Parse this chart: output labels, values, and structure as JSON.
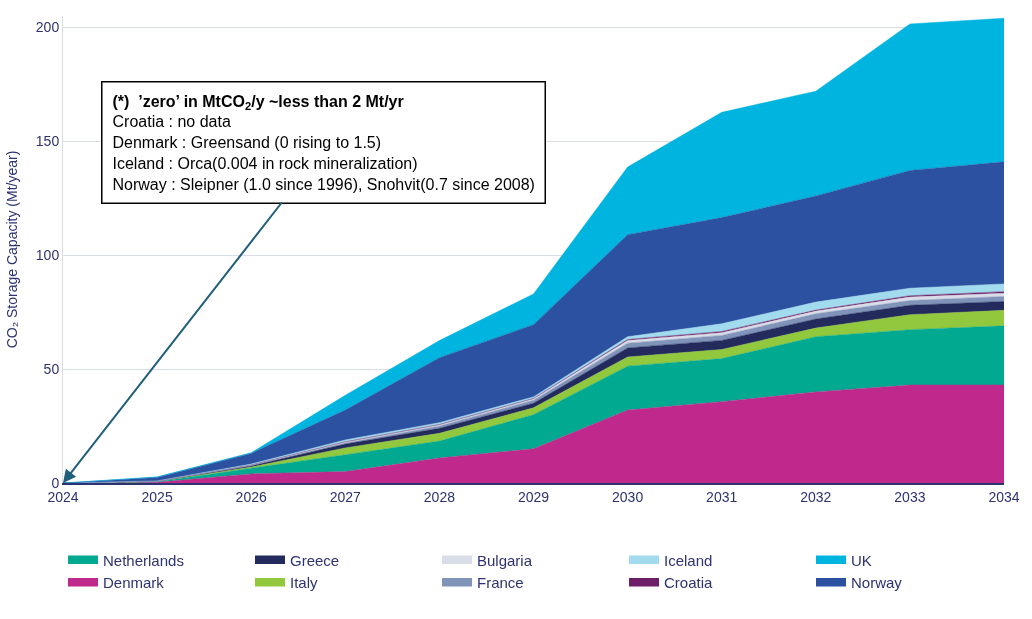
{
  "chart_data": {
    "type": "area",
    "stacked": true,
    "ylabel": "CO₂ Storage Capacity (Mt/year)",
    "x": [
      2024,
      2025,
      2026,
      2027,
      2028,
      2029,
      2030,
      2031,
      2032,
      2033,
      2034
    ],
    "xlim": [
      2024,
      2034
    ],
    "xticks": [
      2024,
      2025,
      2026,
      2027,
      2028,
      2029,
      2030,
      2031,
      2032,
      2033,
      2034
    ],
    "ylim": [
      0,
      205
    ],
    "yticks": [
      0,
      50,
      100,
      150,
      200
    ],
    "grid": "y",
    "legend": "bottom",
    "series": [
      {
        "name": "Denmark",
        "color": "#c0298c",
        "values": [
          0,
          0.3,
          4,
          5,
          11,
          15,
          32,
          35.7,
          40,
          43,
          43
        ]
      },
      {
        "name": "Netherlands",
        "color": "#00a98f",
        "values": [
          0,
          0.3,
          2.5,
          7.4,
          7.4,
          15,
          19.3,
          18.9,
          24.2,
          24.3,
          26
        ]
      },
      {
        "name": "Italy",
        "color": "#92c83e",
        "values": [
          0,
          0.1,
          0.5,
          3,
          3.4,
          3,
          4,
          4,
          3.8,
          6.6,
          6.8
        ]
      },
      {
        "name": "Greece",
        "color": "#232a5c",
        "values": [
          0,
          0.1,
          0.5,
          1.7,
          2.2,
          2,
          4,
          4,
          4,
          4.1,
          3.9
        ]
      },
      {
        "name": "France",
        "color": "#8093b8",
        "values": [
          0,
          0,
          0.3,
          0.5,
          1,
          1.3,
          2.1,
          2.2,
          2.3,
          2.1,
          2.2
        ]
      },
      {
        "name": "Bulgaria",
        "color": "#d9dde8",
        "values": [
          0,
          0,
          0.2,
          0.4,
          0.6,
          0.7,
          1.2,
          1.2,
          1.2,
          1.5,
          1.4
        ]
      },
      {
        "name": "Croatia",
        "color": "#6d2068",
        "values": [
          0,
          0,
          0,
          0.1,
          0.1,
          0.1,
          0.4,
          0.5,
          0.4,
          0.6,
          0.7
        ]
      },
      {
        "name": "Iceland",
        "color": "#a3dbee",
        "values": [
          0,
          0.1,
          0.3,
          0.8,
          0.8,
          0.7,
          1.2,
          3.4,
          3.5,
          3.3,
          3.4
        ]
      },
      {
        "name": "Norway",
        "color": "#2c51a1",
        "values": [
          0,
          1.5,
          4.7,
          13.1,
          28.5,
          31.7,
          44.8,
          46.6,
          46.6,
          51.7,
          53.6
        ]
      },
      {
        "name": "UK",
        "color": "#00b4e0",
        "values": [
          0,
          0.3,
          0.3,
          6.5,
          7.5,
          13.5,
          29.7,
          46.2,
          46,
          64.3,
          63
        ]
      }
    ],
    "annotations": [
      "(*)  ’zero’ in MtCO$_{2}$/y ~less than 2 Mt/yr\nCroatia : no data\nDenmark : Greensand (0 rising to 1.5)\nIceland : Orca(0.004 in rock mineralization)\nNorway : Sleipner (1.0 since 1996), Snohvit(0.7 since 2008)"
    ]
  }
}
